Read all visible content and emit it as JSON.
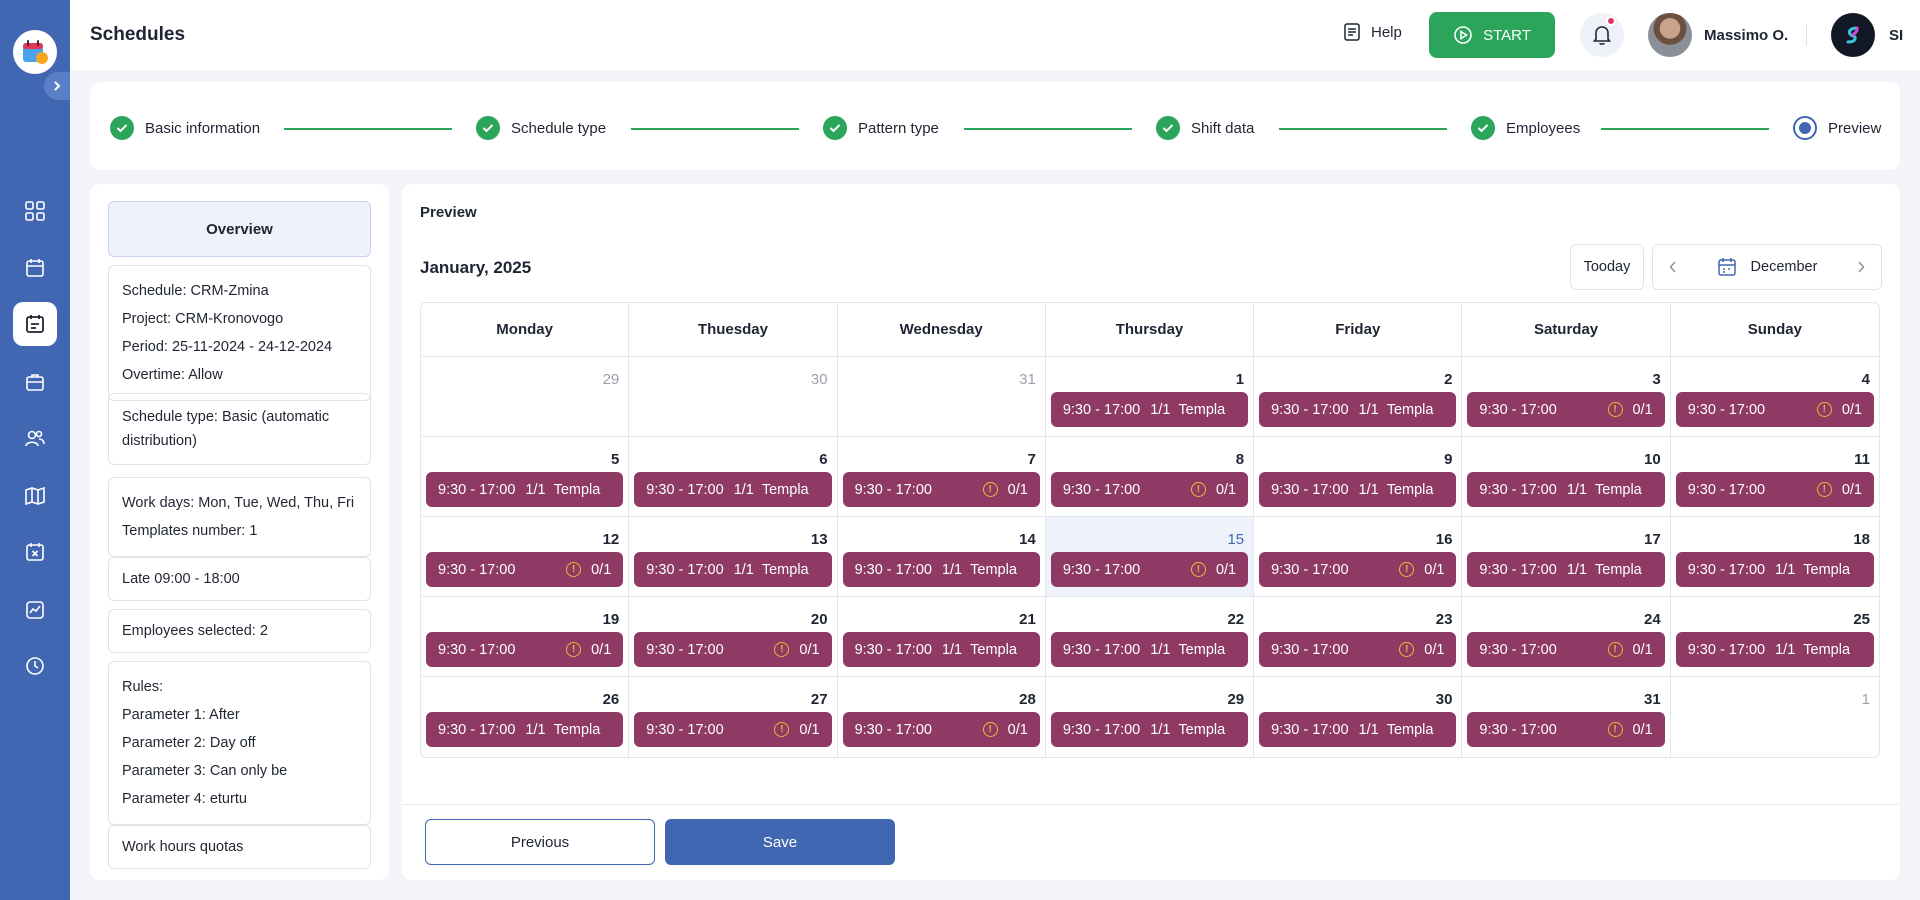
{
  "app": {
    "page_title": "Schedules"
  },
  "sidebar": {
    "items": [
      {
        "icon": "grid-icon",
        "active": false
      },
      {
        "icon": "calendar-icon",
        "active": false
      },
      {
        "icon": "schedule-icon",
        "active": true
      },
      {
        "icon": "briefcase-icon",
        "active": false
      },
      {
        "icon": "users-icon",
        "active": false
      },
      {
        "icon": "map-icon",
        "active": false
      },
      {
        "icon": "calendar-x-icon",
        "active": false
      },
      {
        "icon": "chart-icon",
        "active": false
      },
      {
        "icon": "clock-icon",
        "active": false
      }
    ]
  },
  "header": {
    "help_label": "Help",
    "start_label": "START",
    "user_name": "Massimo O.",
    "company_abbr": "SI"
  },
  "stepper": {
    "steps": [
      {
        "label": "Basic information",
        "status": "done"
      },
      {
        "label": "Schedule type",
        "status": "done"
      },
      {
        "label": "Pattern type",
        "status": "done"
      },
      {
        "label": "Shift data",
        "status": "done"
      },
      {
        "label": "Employees",
        "status": "done"
      },
      {
        "label": "Preview",
        "status": "current"
      }
    ]
  },
  "overview": {
    "title": "Overview",
    "schedule": "Schedule: CRM-Zmina",
    "project": "Project: CRM-Kronovogo",
    "period": "Period: 25-11-2024 - 24-12-2024",
    "overtime": "Overtime: Allow",
    "schedule_type": "Schedule type: Basic (automatic distribution)",
    "work_days": "Work days: Mon, Tue, Wed, Thu, Fri",
    "templates": "Templates number: 1",
    "late": "Late 09:00 - 18:00",
    "employees": "Employees selected: 2",
    "rules_title": "Rules:",
    "param1": "Parameter 1: After",
    "param2": "Parameter 2: Day off",
    "param3": "Parameter 3: Can only be",
    "param4": "Parameter 4: eturtu",
    "quotas": "Work hours quotas"
  },
  "preview": {
    "section_label": "Preview",
    "month_title": "January, 2025",
    "today_label": "Tooday",
    "month_select": "December",
    "weekdays": [
      "Monday",
      "Thuesday",
      "Wednesday",
      "Thursday",
      "Friday",
      "Saturday",
      "Sunday"
    ],
    "shift_time": "9:30 - 17:00",
    "days": [
      {
        "num": "29",
        "muted": true,
        "shift": null
      },
      {
        "num": "30",
        "muted": true,
        "shift": null
      },
      {
        "num": "31",
        "muted": true,
        "shift": null
      },
      {
        "num": "1",
        "shift": "filled"
      },
      {
        "num": "2",
        "shift": "filled"
      },
      {
        "num": "3",
        "shift": "open"
      },
      {
        "num": "4",
        "shift": "open"
      },
      {
        "num": "5",
        "shift": "filled"
      },
      {
        "num": "6",
        "shift": "filled"
      },
      {
        "num": "7",
        "shift": "open"
      },
      {
        "num": "8",
        "shift": "open"
      },
      {
        "num": "9",
        "shift": "filled"
      },
      {
        "num": "10",
        "shift": "filled"
      },
      {
        "num": "11",
        "shift": "open"
      },
      {
        "num": "12",
        "shift": "open"
      },
      {
        "num": "13",
        "shift": "filled"
      },
      {
        "num": "14",
        "shift": "filled"
      },
      {
        "num": "15",
        "today": true,
        "shift": "open"
      },
      {
        "num": "16",
        "shift": "open"
      },
      {
        "num": "17",
        "shift": "filled"
      },
      {
        "num": "18",
        "shift": "filled"
      },
      {
        "num": "19",
        "shift": "open"
      },
      {
        "num": "20",
        "shift": "open"
      },
      {
        "num": "21",
        "shift": "filled"
      },
      {
        "num": "22",
        "shift": "filled"
      },
      {
        "num": "23",
        "shift": "open"
      },
      {
        "num": "24",
        "shift": "open"
      },
      {
        "num": "25",
        "shift": "filled"
      },
      {
        "num": "26",
        "shift": "filled"
      },
      {
        "num": "27",
        "shift": "open"
      },
      {
        "num": "28",
        "shift": "open"
      },
      {
        "num": "29",
        "shift": "filled"
      },
      {
        "num": "30",
        "shift": "filled"
      },
      {
        "num": "31",
        "shift": "open"
      },
      {
        "num": "1",
        "muted": true,
        "shift": null
      }
    ],
    "filled_count": "1/1",
    "filled_tag": "Templa",
    "open_count": "0/1",
    "shift_color": "#8e3a64",
    "warning_color": "#f5b335"
  },
  "footer": {
    "previous_label": "Previous",
    "save_label": "Save"
  },
  "colors": {
    "sidebar": "#4267b2",
    "success": "#2aa55a",
    "primary": "#4267b2"
  }
}
